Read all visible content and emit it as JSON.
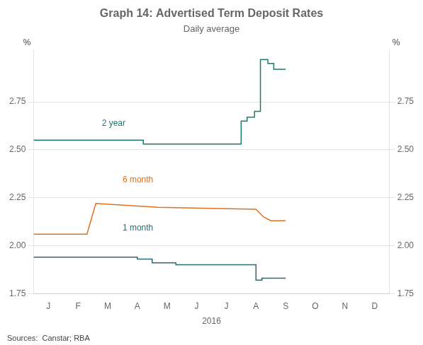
{
  "chart_data": {
    "type": "line",
    "title": "Graph 14: Advertised Term Deposit Rates",
    "subtitle": "Daily average",
    "xlabel": "2016",
    "ylabel": "%",
    "y2label": "%",
    "source": "Sources:  Canstar; RBA",
    "xlim": [
      0,
      12
    ],
    "xticks": [
      {
        "value": 0.5,
        "label": "J"
      },
      {
        "value": 1.5,
        "label": "F"
      },
      {
        "value": 2.5,
        "label": "M"
      },
      {
        "value": 3.5,
        "label": "A"
      },
      {
        "value": 4.5,
        "label": "M"
      },
      {
        "value": 5.5,
        "label": "J"
      },
      {
        "value": 6.5,
        "label": "J"
      },
      {
        "value": 7.5,
        "label": "A"
      },
      {
        "value": 8.5,
        "label": "S"
      },
      {
        "value": 9.5,
        "label": "O"
      },
      {
        "value": 10.5,
        "label": "N"
      },
      {
        "value": 11.5,
        "label": "D"
      }
    ],
    "ylim": [
      1.75,
      3.02
    ],
    "yticks": [
      1.75,
      {
        "value": 2.0,
        "label": "2.00"
      },
      2.25,
      {
        "value": 2.5,
        "label": "2.50"
      },
      2.75
    ],
    "y2lim": [
      1.75,
      3.02
    ],
    "y2ticks": [
      1.75,
      {
        "value": 2.0,
        "label": "2.00"
      },
      2.25,
      {
        "value": 2.5,
        "label": "2.50"
      },
      2.75
    ],
    "grid": "y",
    "series": [
      {
        "color": "#1a7a6e",
        "x": [
          0,
          1.5,
          1.5,
          3.7,
          3.7,
          4.3,
          4.3,
          7.0,
          7.0,
          7.2,
          7.2,
          7.45,
          7.45,
          7.65,
          7.65,
          7.9,
          7.9,
          8.1,
          8.1,
          8.5
        ],
        "values": [
          2.55,
          2.55,
          2.55,
          2.55,
          2.53,
          2.53,
          2.53,
          2.53,
          2.65,
          2.65,
          2.67,
          2.67,
          2.7,
          2.7,
          2.97,
          2.97,
          2.95,
          2.95,
          2.92,
          2.92
        ]
      },
      {
        "color": "#e07020",
        "x": [
          0,
          1.8,
          1.8,
          2.1,
          2.1,
          4.2,
          4.2,
          7.5,
          7.5,
          7.75,
          7.75,
          8.0,
          8.0,
          8.5
        ],
        "values": [
          2.06,
          2.06,
          2.06,
          2.22,
          2.22,
          2.2,
          2.2,
          2.19,
          2.19,
          2.15,
          2.15,
          2.13,
          2.13,
          2.13
        ]
      },
      {
        "color": "#2a6a70",
        "x": [
          0,
          3.5,
          3.5,
          4.0,
          4.0,
          4.8,
          4.8,
          7.5,
          7.5,
          7.7,
          7.7,
          8.5
        ],
        "values": [
          1.94,
          1.94,
          1.93,
          1.93,
          1.91,
          1.91,
          1.9,
          1.9,
          1.82,
          1.82,
          1.83,
          1.83
        ]
      }
    ],
    "annotations": [
      {
        "text": "2 year",
        "x": 2.3,
        "y": 2.615,
        "color": "#1a7a6e"
      },
      {
        "text": "6 month",
        "x": 3.0,
        "y": 2.32,
        "color": "#e07020"
      },
      {
        "text": "1 month",
        "x": 3.0,
        "y": 2.07,
        "color": "#2a6a70"
      }
    ]
  }
}
